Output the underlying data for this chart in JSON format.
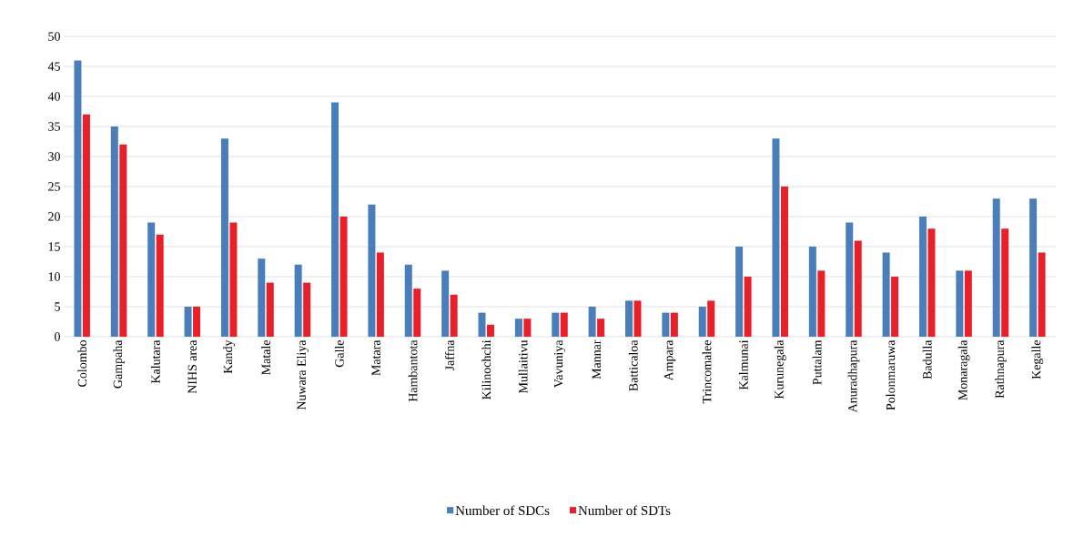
{
  "chart_data": {
    "type": "bar",
    "categories": [
      "Colombo",
      "Gampaha",
      "Kalutara",
      "NIHS area",
      "Kandy",
      "Matale",
      "Nuwara Eliya",
      "Galle",
      "Matara",
      "Hambantota",
      "Jaffna",
      "Kilinochchi",
      "Mullaitivu",
      "Vavuniya",
      "Mannar",
      "Batticaloa",
      "Ampara",
      "Trincomalee",
      "Kalmunai",
      "Kurunegala",
      "Puttalam",
      "Anuradhapura",
      "Polonmaruwa",
      "Badulla",
      "Monaragala",
      "Rathnapura",
      "Kegalle"
    ],
    "series": [
      {
        "name": "Number of SDCs",
        "color": "#4a7ebb",
        "values": [
          46,
          35,
          19,
          5,
          33,
          13,
          12,
          39,
          22,
          12,
          11,
          4,
          3,
          4,
          5,
          6,
          4,
          5,
          15,
          33,
          15,
          19,
          14,
          20,
          11,
          23,
          23
        ]
      },
      {
        "name": "Number of SDTs",
        "color": "#e8202a",
        "values": [
          37,
          32,
          17,
          5,
          19,
          9,
          9,
          20,
          14,
          8,
          7,
          2,
          3,
          4,
          3,
          6,
          4,
          6,
          10,
          25,
          11,
          16,
          10,
          18,
          11,
          18,
          14
        ]
      }
    ],
    "ylim": [
      0,
      50
    ],
    "yticks": [
      0,
      5,
      10,
      15,
      20,
      25,
      30,
      35,
      40,
      45,
      50
    ],
    "grid": "y",
    "legend": "bottom"
  }
}
